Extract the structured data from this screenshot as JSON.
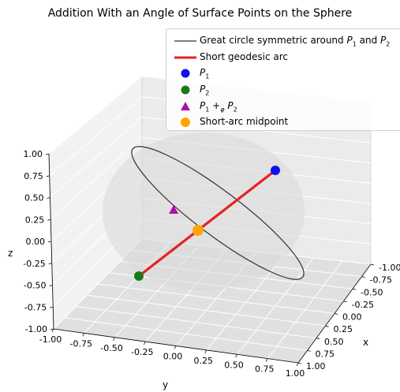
{
  "figure": {
    "title": "Addition With an Angle of Surface Points on the Sphere"
  },
  "chart_data": {
    "type": "scatter",
    "title": "Addition With an Angle of Surface Points on the Sphere",
    "xlabel": "x",
    "ylabel": "y",
    "zlabel": "z",
    "xlim": [
      -1.0,
      1.0
    ],
    "ylim": [
      -1.0,
      1.0
    ],
    "zlim": [
      -1.0,
      1.0
    ],
    "x_ticks": [
      "-1.00",
      "-0.75",
      "-0.50",
      "-0.25",
      "0.00",
      "0.25",
      "0.50",
      "0.75",
      "1.00"
    ],
    "y_ticks": [
      "-1.00",
      "-0.75",
      "-0.50",
      "-0.25",
      "0.00",
      "0.25",
      "0.50",
      "0.75",
      "1.00"
    ],
    "z_ticks": [
      "-1.00",
      "-0.75",
      "-0.50",
      "-0.25",
      "0.00",
      "0.25",
      "0.50",
      "0.75",
      "1.00"
    ],
    "grid": true,
    "legend_position": "top-right",
    "colors": {
      "great_circle": "#333333",
      "short_arc": "#e62222",
      "p1": "#1010ee",
      "p2": "#1a7a1a",
      "sum": "#aa10aa",
      "midpoint": "#ffa500",
      "sphere": "#d9d9d9"
    },
    "series": [
      {
        "name": "Great circle symmetric around P1 and P2",
        "type": "line",
        "color": "#333333"
      },
      {
        "name": "Short geodesic arc",
        "type": "line",
        "color": "#e62222"
      },
      {
        "name": "P1",
        "type": "point",
        "marker": "circle",
        "color": "#1010ee",
        "x": -0.6,
        "y": 0.2,
        "z": 0.75
      },
      {
        "name": "P2",
        "type": "point",
        "marker": "circle",
        "color": "#1a7a1a",
        "x": 0.55,
        "y": -0.55,
        "z": -0.55
      },
      {
        "name": "P1 +φ P2",
        "type": "point",
        "marker": "triangle",
        "color": "#aa10aa",
        "x": 0.0,
        "y": -0.35,
        "z": 0.45
      },
      {
        "name": "Short-arc midpoint",
        "type": "point",
        "marker": "circle",
        "color": "#ffa500",
        "x": 0.0,
        "y": -0.1,
        "z": 0.15
      }
    ]
  },
  "legend": {
    "items": [
      {
        "label": "Great circle symmetric around ",
        "sub1": "P",
        "sub1i": "1",
        "mid": " and ",
        "sub2": "P",
        "sub2i": "2"
      },
      {
        "label": "Short geodesic arc"
      },
      {
        "label": "P",
        "sub": "1"
      },
      {
        "label": "P",
        "sub": "2"
      },
      {
        "label": "P",
        "sub": "1",
        "op": " +",
        "opsub": "φ",
        "label2": " P",
        "sub2": "2"
      },
      {
        "label": "Short-arc midpoint"
      }
    ]
  }
}
